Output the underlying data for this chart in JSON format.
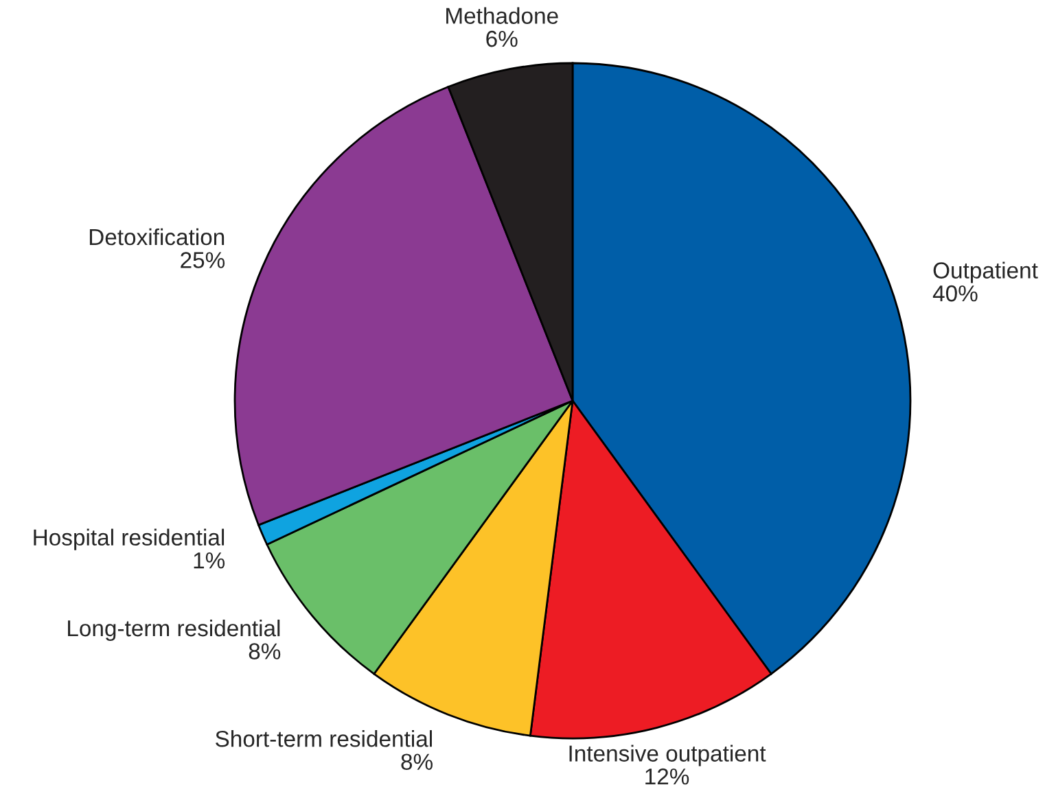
{
  "chart_data": {
    "type": "pie",
    "categories": [
      "Outpatient",
      "Intensive outpatient",
      "Short-term residential",
      "Long-term residential",
      "Hospital residential",
      "Detoxification",
      "Methadone"
    ],
    "values": [
      40,
      12,
      8,
      8,
      1,
      25,
      6
    ],
    "value_labels": [
      "40%",
      "12%",
      "8%",
      "8%",
      "1%",
      "25%",
      "6%"
    ],
    "colors": [
      "#005ea8",
      "#ed1c24",
      "#fdc228",
      "#6abf69",
      "#0fa3e0",
      "#8b3a92",
      "#231f20"
    ]
  }
}
